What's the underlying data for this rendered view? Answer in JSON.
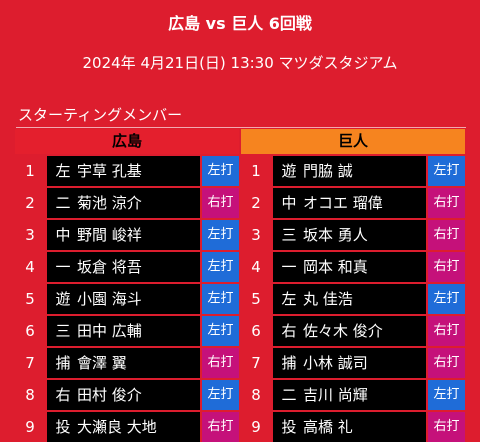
{
  "header": {
    "title": "広島 vs 巨人 6回戦",
    "subtitle": "2024年 4月21日(日) 13:30 マツダスタジアム"
  },
  "section_label": "スターティングメンバー",
  "colors": {
    "background": "#dd1d2e",
    "home_header": "#e41f2d",
    "away_header": "#f6841f",
    "left_bat": "#1f6cd8",
    "right_bat": "#c5117a"
  },
  "teams": [
    {
      "name": "広島",
      "players": [
        {
          "order": "1",
          "pos": "左",
          "name": "宇草 孔基",
          "bat": "左打",
          "side": "L"
        },
        {
          "order": "2",
          "pos": "二",
          "name": "菊池 涼介",
          "bat": "右打",
          "side": "R"
        },
        {
          "order": "3",
          "pos": "中",
          "name": "野間 峻祥",
          "bat": "左打",
          "side": "L"
        },
        {
          "order": "4",
          "pos": "一",
          "name": "坂倉 将吾",
          "bat": "左打",
          "side": "L"
        },
        {
          "order": "5",
          "pos": "遊",
          "name": "小園 海斗",
          "bat": "左打",
          "side": "L"
        },
        {
          "order": "6",
          "pos": "三",
          "name": "田中 広輔",
          "bat": "左打",
          "side": "L"
        },
        {
          "order": "7",
          "pos": "捕",
          "name": "會澤 翼",
          "bat": "右打",
          "side": "R"
        },
        {
          "order": "8",
          "pos": "右",
          "name": "田村 俊介",
          "bat": "左打",
          "side": "L"
        },
        {
          "order": "9",
          "pos": "投",
          "name": "大瀬良 大地",
          "bat": "右打",
          "side": "R"
        }
      ]
    },
    {
      "name": "巨人",
      "players": [
        {
          "order": "1",
          "pos": "遊",
          "name": "門脇 誠",
          "bat": "左打",
          "side": "L"
        },
        {
          "order": "2",
          "pos": "中",
          "name": "オコエ 瑠偉",
          "bat": "右打",
          "side": "R"
        },
        {
          "order": "3",
          "pos": "三",
          "name": "坂本 勇人",
          "bat": "右打",
          "side": "R"
        },
        {
          "order": "4",
          "pos": "一",
          "name": "岡本 和真",
          "bat": "右打",
          "side": "R"
        },
        {
          "order": "5",
          "pos": "左",
          "name": "丸 佳浩",
          "bat": "左打",
          "side": "L"
        },
        {
          "order": "6",
          "pos": "右",
          "name": "佐々木 俊介",
          "bat": "右打",
          "side": "R"
        },
        {
          "order": "7",
          "pos": "捕",
          "name": "小林 誠司",
          "bat": "右打",
          "side": "R"
        },
        {
          "order": "8",
          "pos": "二",
          "name": "吉川 尚輝",
          "bat": "左打",
          "side": "L"
        },
        {
          "order": "9",
          "pos": "投",
          "name": "高橋 礼",
          "bat": "右打",
          "side": "R"
        }
      ]
    }
  ]
}
